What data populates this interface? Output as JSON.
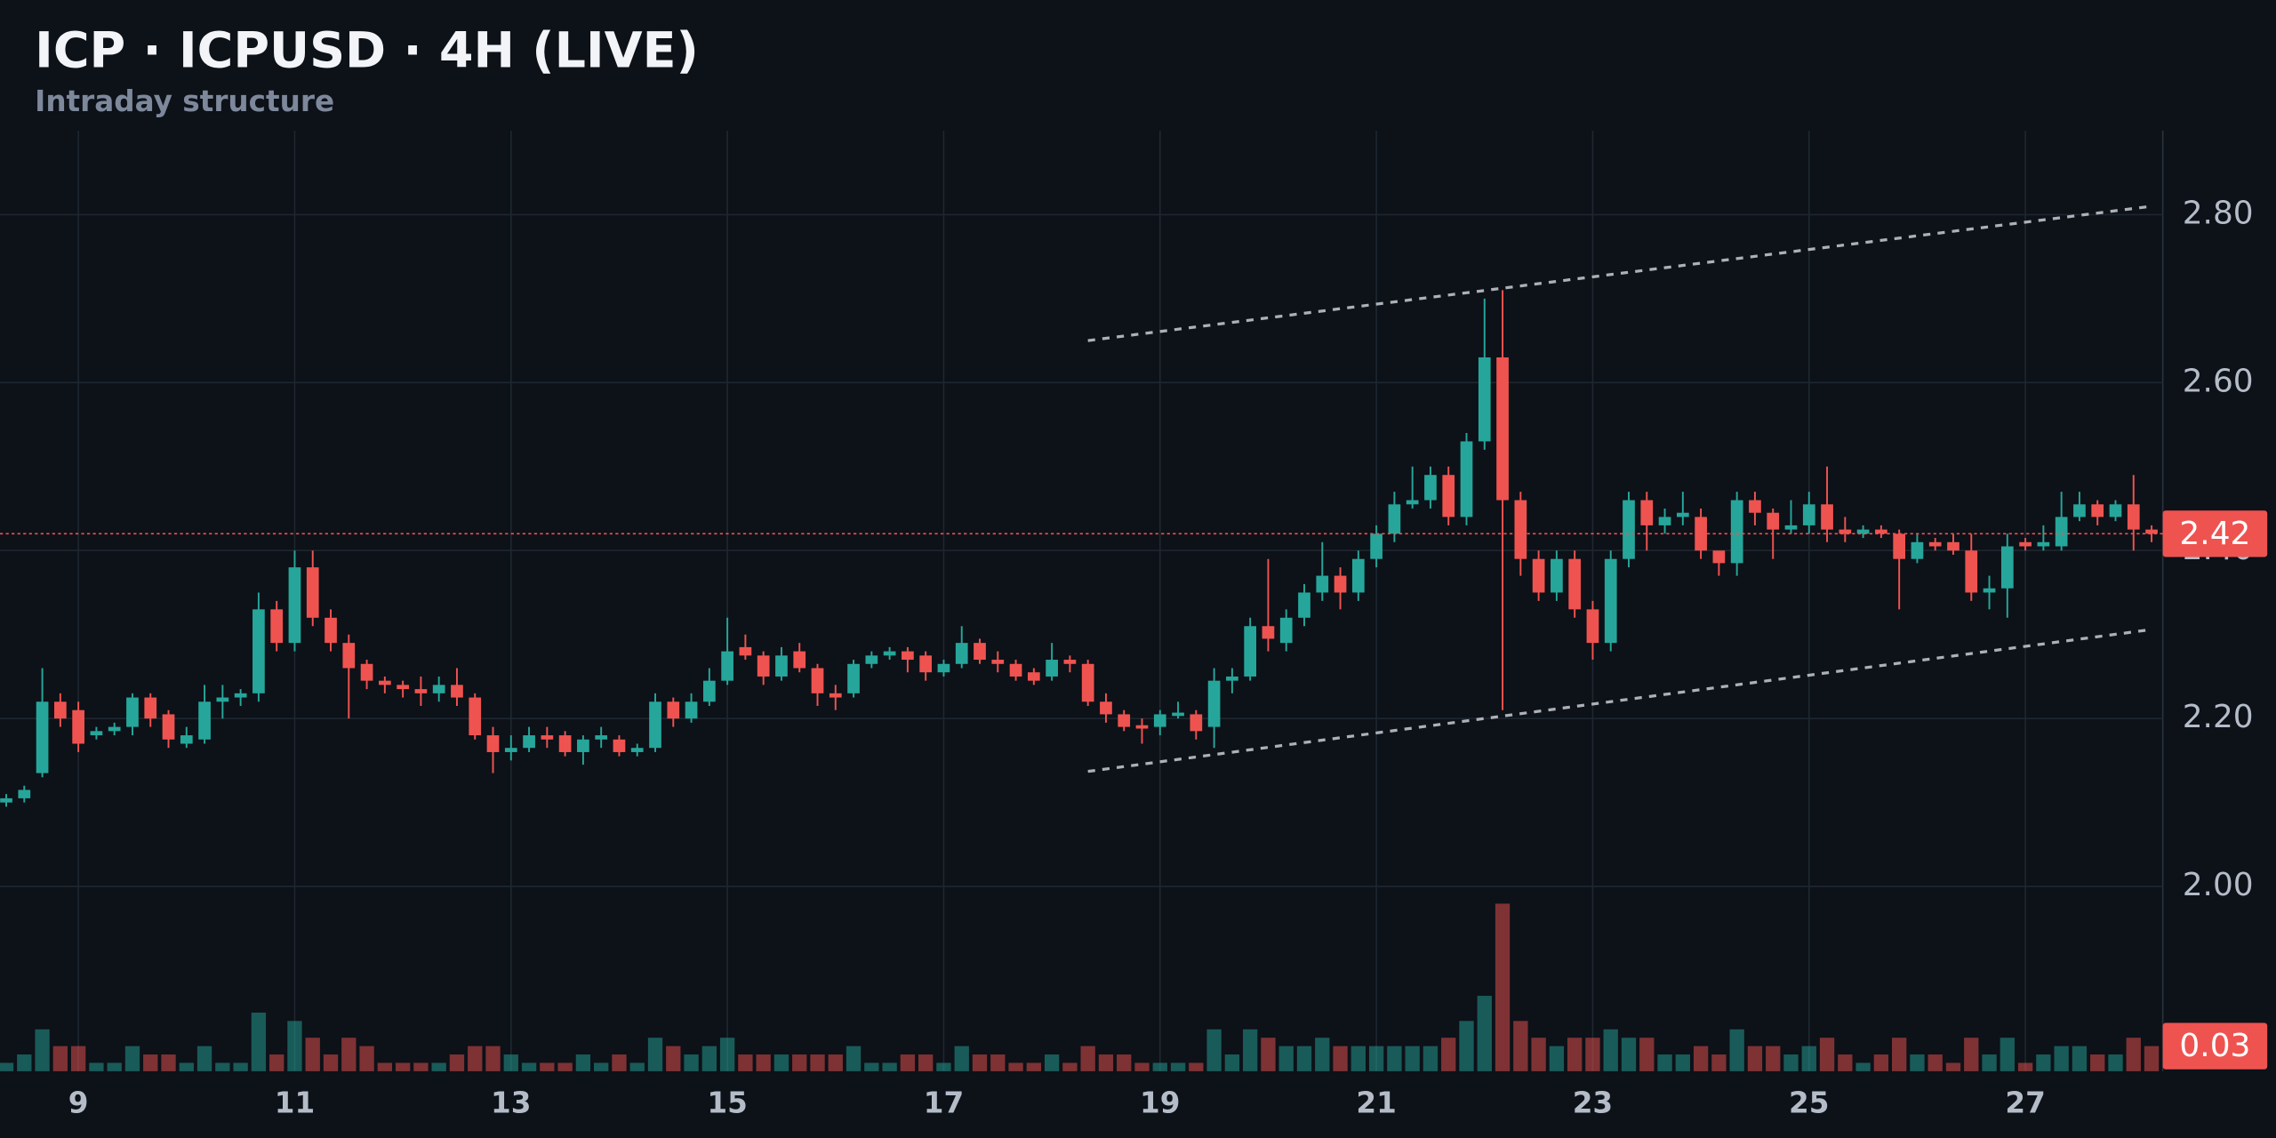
{
  "chart_data": {
    "type": "candlestick",
    "title": "ICP · ICPUSD · 4H (LIVE)",
    "subtitle": "Intraday structure",
    "categories": [
      null,
      null,
      null,
      null,
      "9",
      null,
      null,
      null,
      null,
      null,
      null,
      null,
      null,
      null,
      null,
      null,
      "11",
      null,
      null,
      null,
      null,
      null,
      null,
      null,
      null,
      null,
      null,
      null,
      "13",
      null,
      null,
      null,
      null,
      null,
      null,
      null,
      null,
      null,
      null,
      null,
      "15",
      null,
      null,
      null,
      null,
      null,
      null,
      null,
      null,
      null,
      null,
      null,
      "17",
      null,
      null,
      null,
      null,
      null,
      null,
      null,
      null,
      null,
      null,
      null,
      "19",
      null,
      null,
      null,
      null,
      null,
      null,
      null,
      null,
      null,
      null,
      null,
      "21",
      null,
      null,
      null,
      null,
      null,
      null,
      null,
      null,
      null,
      null,
      null,
      "23",
      null,
      null,
      null,
      null,
      null,
      null,
      null,
      null,
      null,
      null,
      null,
      "25",
      null,
      null,
      null,
      null,
      null,
      null,
      null,
      null,
      null,
      null,
      null,
      "27",
      null,
      null,
      null,
      null,
      null,
      null,
      null
    ],
    "open": [
      2.1,
      2.105,
      2.135,
      2.22,
      2.21,
      2.18,
      2.185,
      2.19,
      2.225,
      2.205,
      2.17,
      2.175,
      2.22,
      2.225,
      2.23,
      2.33,
      2.29,
      2.38,
      2.32,
      2.29,
      2.265,
      2.245,
      2.24,
      2.235,
      2.23,
      2.24,
      2.225,
      2.18,
      2.16,
      2.165,
      2.18,
      2.18,
      2.16,
      2.175,
      2.175,
      2.16,
      2.165,
      2.22,
      2.2,
      2.22,
      2.245,
      2.285,
      2.275,
      2.25,
      2.28,
      2.26,
      2.23,
      2.23,
      2.265,
      2.275,
      2.28,
      2.275,
      2.255,
      2.265,
      2.29,
      2.27,
      2.265,
      2.255,
      2.25,
      2.27,
      2.265,
      2.22,
      2.205,
      2.192,
      2.19,
      2.203,
      2.205,
      2.19,
      2.245,
      2.25,
      2.31,
      2.29,
      2.32,
      2.35,
      2.37,
      2.35,
      2.39,
      2.42,
      2.455,
      2.46,
      2.49,
      2.44,
      2.53,
      2.63,
      2.46,
      2.39,
      2.35,
      2.39,
      2.33,
      2.29,
      2.39,
      2.46,
      2.43,
      2.44,
      2.44,
      2.4,
      2.385,
      2.46,
      2.445,
      2.425,
      2.43,
      2.455,
      2.425,
      2.42,
      2.425,
      2.42,
      2.39,
      2.41,
      2.41,
      2.4,
      2.35,
      2.355,
      2.41,
      2.405,
      2.405,
      2.44,
      2.455,
      2.44,
      2.455,
      2.425
    ],
    "high": [
      2.11,
      2.12,
      2.26,
      2.23,
      2.22,
      2.19,
      2.195,
      2.23,
      2.23,
      2.21,
      2.19,
      2.24,
      2.24,
      2.235,
      2.35,
      2.34,
      2.4,
      2.4,
      2.33,
      2.3,
      2.27,
      2.25,
      2.245,
      2.25,
      2.25,
      2.26,
      2.23,
      2.19,
      2.18,
      2.19,
      2.19,
      2.185,
      2.18,
      2.19,
      2.18,
      2.17,
      2.23,
      2.225,
      2.23,
      2.26,
      2.32,
      2.3,
      2.28,
      2.285,
      2.29,
      2.265,
      2.24,
      2.27,
      2.28,
      2.285,
      2.285,
      2.28,
      2.27,
      2.31,
      2.295,
      2.28,
      2.27,
      2.26,
      2.29,
      2.275,
      2.27,
      2.23,
      2.21,
      2.2,
      2.21,
      2.22,
      2.21,
      2.26,
      2.26,
      2.32,
      2.39,
      2.33,
      2.36,
      2.41,
      2.38,
      2.4,
      2.43,
      2.47,
      2.5,
      2.5,
      2.5,
      2.54,
      2.7,
      2.71,
      2.47,
      2.4,
      2.4,
      2.4,
      2.34,
      2.4,
      2.47,
      2.47,
      2.45,
      2.47,
      2.45,
      2.39,
      2.47,
      2.47,
      2.45,
      2.46,
      2.47,
      2.5,
      2.44,
      2.43,
      2.43,
      2.425,
      2.42,
      2.415,
      2.42,
      2.42,
      2.37,
      2.42,
      2.415,
      2.43,
      2.47,
      2.47,
      2.46,
      2.46,
      2.49,
      2.43
    ],
    "low": [
      2.095,
      2.1,
      2.13,
      2.19,
      2.16,
      2.175,
      2.18,
      2.18,
      2.19,
      2.165,
      2.165,
      2.17,
      2.2,
      2.215,
      2.22,
      2.28,
      2.28,
      2.31,
      2.28,
      2.2,
      2.235,
      2.23,
      2.225,
      2.215,
      2.22,
      2.215,
      2.175,
      2.135,
      2.15,
      2.16,
      2.165,
      2.155,
      2.145,
      2.165,
      2.155,
      2.155,
      2.16,
      2.19,
      2.195,
      2.215,
      2.24,
      2.27,
      2.24,
      2.245,
      2.255,
      2.215,
      2.21,
      2.225,
      2.26,
      2.27,
      2.255,
      2.245,
      2.25,
      2.26,
      2.265,
      2.255,
      2.245,
      2.24,
      2.245,
      2.255,
      2.215,
      2.195,
      2.185,
      2.17,
      2.18,
      2.2,
      2.175,
      2.165,
      2.23,
      2.245,
      2.28,
      2.28,
      2.31,
      2.34,
      2.33,
      2.34,
      2.38,
      2.41,
      2.45,
      2.45,
      2.43,
      2.43,
      2.52,
      2.21,
      2.37,
      2.34,
      2.34,
      2.32,
      2.27,
      2.28,
      2.38,
      2.4,
      2.42,
      2.43,
      2.39,
      2.37,
      2.37,
      2.43,
      2.39,
      2.42,
      2.42,
      2.41,
      2.41,
      2.415,
      2.415,
      2.33,
      2.385,
      2.4,
      2.395,
      2.34,
      2.33,
      2.32,
      2.4,
      2.4,
      2.4,
      2.435,
      2.43,
      2.435,
      2.4,
      2.41
    ],
    "close": [
      2.105,
      2.115,
      2.22,
      2.2,
      2.17,
      2.185,
      2.19,
      2.225,
      2.2,
      2.175,
      2.18,
      2.22,
      2.225,
      2.23,
      2.33,
      2.29,
      2.38,
      2.32,
      2.29,
      2.26,
      2.245,
      2.24,
      2.235,
      2.23,
      2.24,
      2.225,
      2.18,
      2.16,
      2.165,
      2.18,
      2.175,
      2.16,
      2.175,
      2.18,
      2.16,
      2.165,
      2.22,
      2.2,
      2.22,
      2.245,
      2.28,
      2.275,
      2.25,
      2.275,
      2.26,
      2.23,
      2.225,
      2.265,
      2.275,
      2.28,
      2.27,
      2.255,
      2.265,
      2.29,
      2.27,
      2.265,
      2.25,
      2.245,
      2.27,
      2.265,
      2.22,
      2.205,
      2.19,
      2.188,
      2.205,
      2.207,
      2.185,
      2.245,
      2.25,
      2.31,
      2.295,
      2.32,
      2.35,
      2.37,
      2.35,
      2.39,
      2.42,
      2.455,
      2.46,
      2.49,
      2.44,
      2.53,
      2.63,
      2.46,
      2.39,
      2.35,
      2.39,
      2.33,
      2.29,
      2.39,
      2.46,
      2.43,
      2.44,
      2.445,
      2.4,
      2.385,
      2.46,
      2.445,
      2.425,
      2.43,
      2.455,
      2.425,
      2.42,
      2.425,
      2.42,
      2.39,
      2.41,
      2.405,
      2.4,
      2.35,
      2.355,
      2.405,
      2.405,
      2.41,
      2.44,
      2.455,
      2.44,
      2.455,
      2.425,
      2.42
    ],
    "volume": [
      0.01,
      0.02,
      0.05,
      0.03,
      0.03,
      0.01,
      0.01,
      0.03,
      0.02,
      0.02,
      0.01,
      0.03,
      0.01,
      0.01,
      0.07,
      0.02,
      0.06,
      0.04,
      0.02,
      0.04,
      0.03,
      0.01,
      0.01,
      0.01,
      0.01,
      0.02,
      0.03,
      0.03,
      0.02,
      0.01,
      0.01,
      0.01,
      0.02,
      0.01,
      0.02,
      0.01,
      0.04,
      0.03,
      0.02,
      0.03,
      0.04,
      0.02,
      0.02,
      0.02,
      0.02,
      0.02,
      0.02,
      0.03,
      0.01,
      0.01,
      0.02,
      0.02,
      0.01,
      0.03,
      0.02,
      0.02,
      0.01,
      0.01,
      0.02,
      0.01,
      0.03,
      0.02,
      0.02,
      0.01,
      0.01,
      0.01,
      0.01,
      0.05,
      0.02,
      0.05,
      0.04,
      0.03,
      0.03,
      0.04,
      0.03,
      0.03,
      0.03,
      0.03,
      0.03,
      0.03,
      0.04,
      0.06,
      0.09,
      0.2,
      0.06,
      0.04,
      0.03,
      0.04,
      0.04,
      0.05,
      0.04,
      0.04,
      0.02,
      0.02,
      0.03,
      0.02,
      0.05,
      0.03,
      0.03,
      0.02,
      0.03,
      0.04,
      0.02,
      0.01,
      0.02,
      0.04,
      0.02,
      0.02,
      0.01,
      0.04,
      0.02,
      0.04,
      0.01,
      0.02,
      0.03,
      0.03,
      0.02,
      0.02,
      0.04,
      0.03
    ],
    "up_color": "#26a69a",
    "down_color": "#ef5350",
    "ylim": [
      1.78,
      2.9
    ],
    "yticks": [
      {
        "value": 2,
        "label": "2.00"
      },
      {
        "value": 2.2,
        "label": "2.20"
      },
      {
        "value": 2.4,
        "label": "2.40"
      },
      {
        "value": 2.6,
        "label": "2.60"
      },
      {
        "value": 2.8,
        "label": "2.80"
      }
    ],
    "volume_ylim": [
      0,
      0.22
    ],
    "grid": true,
    "trendlines": [
      {
        "from": 60,
        "to": 119,
        "values": [
          2.65,
          2.81
        ]
      },
      {
        "from": 60,
        "to": 119,
        "values": [
          2.137,
          2.306
        ]
      }
    ]
  }
}
